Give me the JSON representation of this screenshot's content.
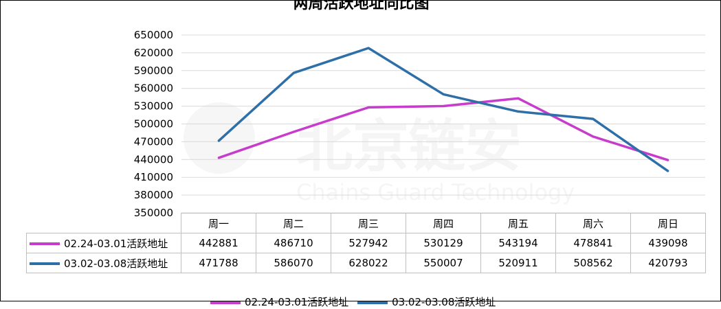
{
  "colors": {
    "series1": "#c83ccc",
    "series2": "#2e6fa8",
    "grid": "#d9d9d9"
  },
  "chart_data": {
    "type": "line",
    "title": "两周活跃地址同比图",
    "categories": [
      "周一",
      "周二",
      "周三",
      "周四",
      "周五",
      "周六",
      "周日"
    ],
    "series": [
      {
        "name": "02.24-03.01活跃地址",
        "values": [
          442881,
          486710,
          527942,
          530129,
          543194,
          478841,
          439098
        ]
      },
      {
        "name": "03.02-03.08活跃地址",
        "values": [
          471788,
          586070,
          628022,
          550007,
          520911,
          508562,
          420793
        ]
      }
    ],
    "ylim": [
      350000,
      650000
    ],
    "yticks": [
      650000,
      620000,
      590000,
      560000,
      530000,
      500000,
      470000,
      440000,
      410000,
      380000,
      350000
    ],
    "grid": true,
    "legend": "bottom",
    "data_table": true
  },
  "watermark": {
    "text": "北京链安",
    "subtext": "Chains Guard Technology"
  }
}
